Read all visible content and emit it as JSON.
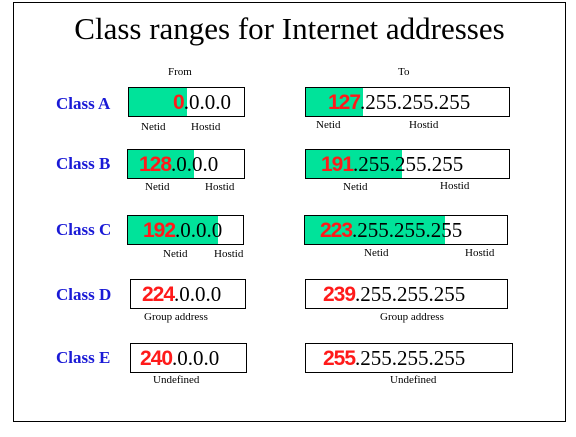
{
  "title": "Class ranges for Internet addresses",
  "columns": {
    "from": "From",
    "to": "To"
  },
  "colors": {
    "class_label": "#1a1ad6",
    "netid_fill": "#00e39a",
    "first_byte": "#ff1a1a"
  },
  "rows": [
    {
      "class": "Class A",
      "from": {
        "hi": "0",
        "rest": ".0.0.0",
        "labels": [
          "Netid",
          "Hostid"
        ]
      },
      "to": {
        "hi": "127",
        "rest": ".255.255.255",
        "labels": [
          "Netid",
          "Hostid"
        ]
      }
    },
    {
      "class": "Class B",
      "from": {
        "hi": "128",
        "rest": ".0.0.0",
        "labels": [
          "Netid",
          "Hostid"
        ]
      },
      "to": {
        "hi": "191",
        "rest": ".255.255.255",
        "labels": [
          "Netid",
          "Hostid"
        ]
      }
    },
    {
      "class": "Class C",
      "from": {
        "hi": "192",
        "rest": ".0.0.0",
        "labels": [
          "Netid",
          "Hostid"
        ]
      },
      "to": {
        "hi": "223",
        "rest": ".255.255.255",
        "labels": [
          "Netid",
          "Hostid"
        ]
      }
    },
    {
      "class": "Class D",
      "from": {
        "hi": "224",
        "rest": ".0.0.0",
        "labels": [
          "Group address"
        ]
      },
      "to": {
        "hi": "239",
        "rest": ".255.255.255",
        "labels": [
          "Group address"
        ]
      }
    },
    {
      "class": "Class E",
      "from": {
        "hi": "240",
        "rest": ".0.0.0",
        "labels": [
          "Undefined"
        ]
      },
      "to": {
        "hi": "255",
        "rest": ".255.255.255",
        "labels": [
          "Undefined"
        ]
      }
    }
  ]
}
